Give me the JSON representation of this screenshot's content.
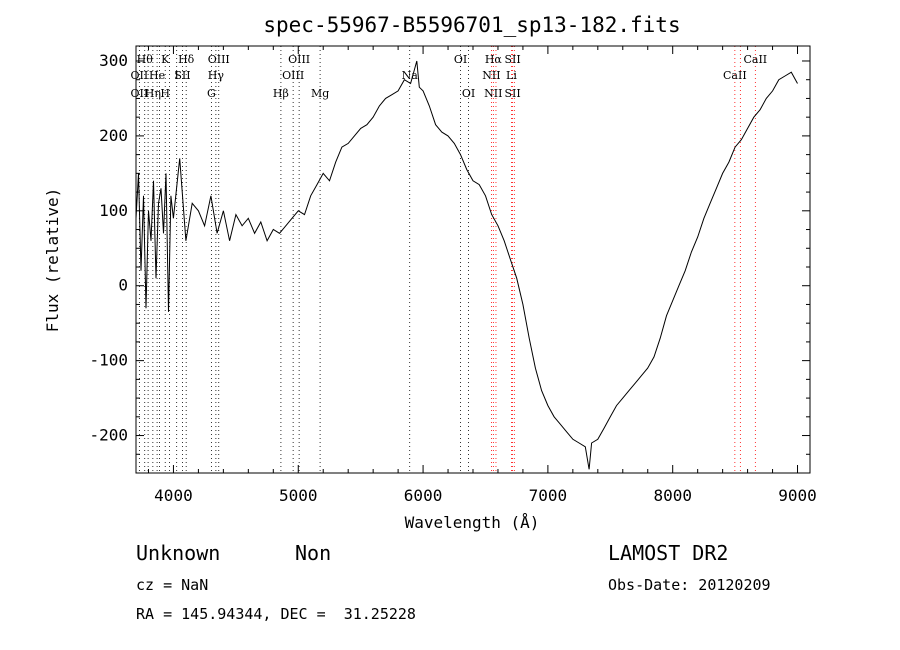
{
  "chart_data": {
    "type": "line",
    "title": "spec-55967-B5596701_sp13-182.fits",
    "xlabel": "Wavelength (Å)",
    "ylabel": "Flux (relative)",
    "xlim": [
      3700,
      9100
    ],
    "ylim": [
      -250,
      320
    ],
    "xticks": [
      4000,
      5000,
      6000,
      7000,
      8000,
      9000
    ],
    "yticks": [
      -200,
      -100,
      0,
      100,
      200,
      300
    ],
    "grid": false,
    "series": [
      {
        "x": [
          3700,
          3720,
          3740,
          3760,
          3780,
          3800,
          3820,
          3840,
          3860,
          3880,
          3900,
          3920,
          3940,
          3960,
          3980,
          4000,
          4050,
          4100,
          4150,
          4200,
          4250,
          4300,
          4350,
          4400,
          4450,
          4500,
          4550,
          4600,
          4650,
          4700,
          4750,
          4800,
          4850,
          4900,
          4950,
          5000,
          5050,
          5100,
          5150,
          5200,
          5250,
          5300,
          5350,
          5400,
          5450,
          5500,
          5550,
          5600,
          5650,
          5700,
          5750,
          5800,
          5850,
          5900,
          5950,
          5970,
          6000,
          6050,
          6100,
          6150,
          6200,
          6250,
          6300,
          6350,
          6400,
          6450,
          6500,
          6550,
          6600,
          6650,
          6700,
          6750,
          6800,
          6850,
          6900,
          6950,
          7000,
          7050,
          7100,
          7150,
          7200,
          7250,
          7300,
          7330,
          7350,
          7400,
          7450,
          7500,
          7550,
          7600,
          7650,
          7700,
          7750,
          7800,
          7850,
          7900,
          7950,
          8000,
          8050,
          8100,
          8150,
          8200,
          8250,
          8300,
          8350,
          8400,
          8450,
          8500,
          8550,
          8600,
          8650,
          8700,
          8750,
          8800,
          8850,
          8900,
          8950,
          9000
        ],
        "y": [
          90,
          150,
          20,
          120,
          -30,
          100,
          60,
          140,
          10,
          110,
          130,
          70,
          150,
          -35,
          120,
          90,
          170,
          60,
          110,
          100,
          80,
          120,
          70,
          100,
          60,
          95,
          80,
          90,
          70,
          85,
          60,
          75,
          70,
          80,
          90,
          100,
          95,
          120,
          135,
          150,
          140,
          165,
          185,
          190,
          200,
          210,
          215,
          225,
          240,
          250,
          255,
          260,
          275,
          270,
          300,
          265,
          260,
          240,
          215,
          205,
          200,
          190,
          175,
          155,
          140,
          135,
          120,
          95,
          80,
          60,
          35,
          10,
          -25,
          -70,
          -110,
          -140,
          -160,
          -175,
          -185,
          -195,
          -205,
          -210,
          -215,
          -245,
          -210,
          -205,
          -190,
          -175,
          -160,
          -150,
          -140,
          -130,
          -120,
          -110,
          -95,
          -70,
          -40,
          -20,
          0,
          20,
          45,
          65,
          90,
          110,
          130,
          150,
          165,
          185,
          195,
          210,
          225,
          235,
          250,
          260,
          275,
          280,
          285,
          270
        ]
      }
    ],
    "lines": [
      {
        "wave": 3727,
        "top": "",
        "mid": "OII",
        "bot": "OII",
        "color": "#000000"
      },
      {
        "wave": 3770,
        "top": "Hθ",
        "mid": "",
        "bot": "",
        "color": "#000000"
      },
      {
        "wave": 3797,
        "top": "",
        "mid": "",
        "bot": "",
        "color": "#000000"
      },
      {
        "wave": 3835,
        "top": "",
        "mid": "",
        "bot": "Hη",
        "color": "#000000"
      },
      {
        "wave": 3869,
        "top": "",
        "mid": "He",
        "bot": "",
        "color": "#000000"
      },
      {
        "wave": 3889,
        "top": "",
        "mid": "",
        "bot": "",
        "color": "#000000"
      },
      {
        "wave": 3934,
        "top": "K",
        "mid": "",
        "bot": "H",
        "color": "#000000"
      },
      {
        "wave": 3969,
        "top": "",
        "mid": "",
        "bot": "",
        "color": "#000000"
      },
      {
        "wave": 4026,
        "top": "",
        "mid": "I",
        "bot": "",
        "color": "#000000"
      },
      {
        "wave": 4072,
        "top": "",
        "mid": "SII",
        "bot": "",
        "color": "#000000"
      },
      {
        "wave": 4102,
        "top": "Hδ",
        "mid": "",
        "bot": "",
        "color": "#000000"
      },
      {
        "wave": 4304,
        "top": "",
        "mid": "",
        "bot": "G",
        "color": "#000000"
      },
      {
        "wave": 4340,
        "top": "",
        "mid": "Hγ",
        "bot": "",
        "color": "#000000"
      },
      {
        "wave": 4363,
        "top": "OIII",
        "mid": "",
        "bot": "",
        "color": "#000000"
      },
      {
        "wave": 4861,
        "top": "",
        "mid": "",
        "bot": "Hβ",
        "color": "#000000"
      },
      {
        "wave": 4959,
        "top": "",
        "mid": "OIII",
        "bot": "",
        "color": "#000000"
      },
      {
        "wave": 5007,
        "top": "OIII",
        "mid": "",
        "bot": "",
        "color": "#000000"
      },
      {
        "wave": 5175,
        "top": "",
        "mid": "",
        "bot": "Mg",
        "color": "#000000"
      },
      {
        "wave": 5893,
        "top": "",
        "mid": "Na",
        "bot": "",
        "color": "#000000"
      },
      {
        "wave": 6300,
        "top": "OI",
        "mid": "",
        "bot": "",
        "color": "#000000"
      },
      {
        "wave": 6364,
        "top": "",
        "mid": "",
        "bot": "OI",
        "color": "#000000"
      },
      {
        "wave": 6548,
        "top": "",
        "mid": "NII",
        "bot": "",
        "color": "#ff0000"
      },
      {
        "wave": 6563,
        "top": "Hα",
        "mid": "",
        "bot": "NII",
        "color": "#ff0000"
      },
      {
        "wave": 6584,
        "top": "",
        "mid": "",
        "bot": "",
        "color": "#ff0000"
      },
      {
        "wave": 6708,
        "top": "",
        "mid": "Li",
        "bot": "",
        "color": "#ff0000"
      },
      {
        "wave": 6717,
        "top": "SII",
        "mid": "",
        "bot": "SII",
        "color": "#ff0000"
      },
      {
        "wave": 6731,
        "top": "",
        "mid": "",
        "bot": "",
        "color": "#ff0000"
      },
      {
        "wave": 8498,
        "top": "",
        "mid": "CaII",
        "bot": "",
        "color": "#ff0000"
      },
      {
        "wave": 8542,
        "top": "",
        "mid": "",
        "bot": "",
        "color": "#ff0000"
      },
      {
        "wave": 8662,
        "top": "CaII",
        "mid": "",
        "bot": "",
        "color": "#ff0000"
      }
    ]
  },
  "info": {
    "classification": "Unknown",
    "subclass": "Non",
    "survey": "LAMOST DR2",
    "cz": "cz = NaN",
    "obs_date": "Obs-Date: 20120209",
    "coords": "RA = 145.94344, DEC =  31.25228"
  }
}
